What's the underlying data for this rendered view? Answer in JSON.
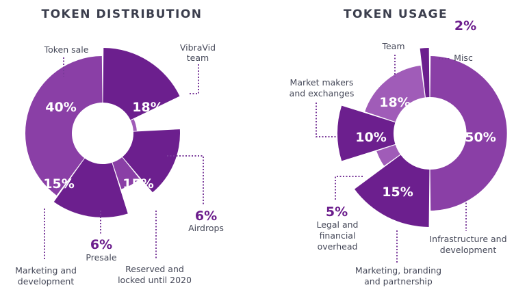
{
  "colors": {
    "dark": "#6c1f8e",
    "mid": "#8a3fa6",
    "light": "#a05cb8",
    "title": "#3b3e4d",
    "label": "#454858",
    "leader": "#7a3a9a"
  },
  "chart_data": [
    {
      "type": "pie",
      "title": "TOKEN DISTRIBUTION",
      "slices": [
        {
          "label": "Token sale",
          "value": 40,
          "display": "40%"
        },
        {
          "label": "VibraVid team",
          "value": 18,
          "display": "18%"
        },
        {
          "label": "Airdrops",
          "value": 6,
          "display": "6%"
        },
        {
          "label": "Reserved and locked until 2020",
          "value": 15,
          "display": "15%"
        },
        {
          "label": "Presale",
          "value": 6,
          "display": "6%"
        },
        {
          "label": "Marketing and development",
          "value": 15,
          "display": "15%"
        }
      ]
    },
    {
      "type": "pie",
      "title": "TOKEN USAGE",
      "slices": [
        {
          "label": "Infrastructure and development",
          "value": 50,
          "display": "50%"
        },
        {
          "label": "Marketing, branding and partnership",
          "value": 15,
          "display": "15%"
        },
        {
          "label": "Legal and financial overhead",
          "value": 5,
          "display": "5%"
        },
        {
          "label": "Market makers and exchanges",
          "value": 10,
          "display": "10%"
        },
        {
          "label": "Team",
          "value": 18,
          "display": "18%"
        },
        {
          "label": "Misc",
          "value": 2,
          "display": "2%"
        }
      ]
    }
  ]
}
